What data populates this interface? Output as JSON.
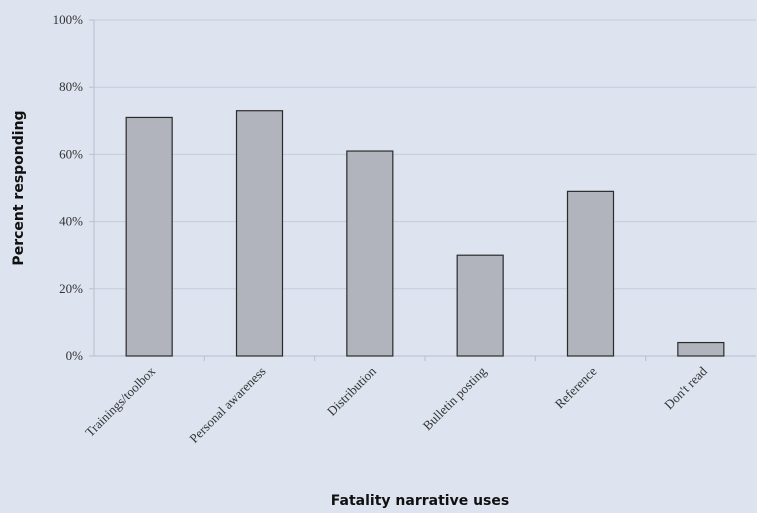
{
  "chart_data": {
    "type": "bar",
    "title": "",
    "xlabel": "Fatality narrative uses",
    "ylabel": "Percent responding",
    "categories": [
      "Trainings/toolbox",
      "Personal awareness",
      "Distribution",
      "Bulletin posting",
      "Reference",
      "Don't read"
    ],
    "values": [
      71,
      73,
      61,
      30,
      49,
      4
    ],
    "ylim": [
      0,
      100
    ],
    "yticks": [
      "0%",
      "20%",
      "40%",
      "60%",
      "80%",
      "100%"
    ],
    "grid": true,
    "legend": "none",
    "colors": {
      "background": "#dde3ef",
      "bar_fill": "#b1b4bc",
      "bar_stroke": "#2b2b2b",
      "gridline": "#c5ccda",
      "axis": "#b8becb"
    }
  }
}
